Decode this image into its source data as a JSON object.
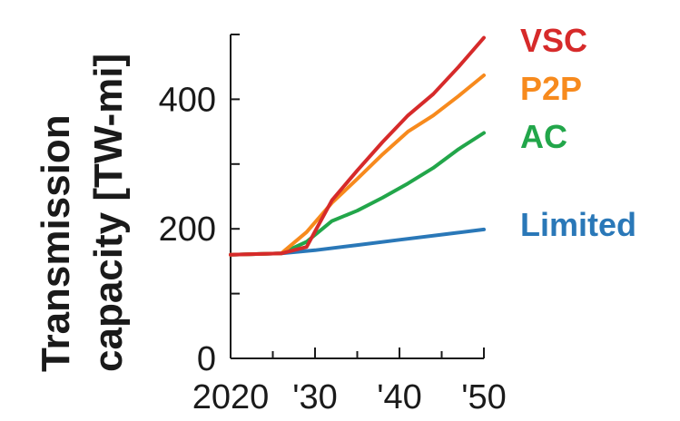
{
  "chart_data": {
    "type": "line",
    "ylabel_lines": [
      "Transmission",
      "capacity [TW-mi]"
    ],
    "xlabel": "",
    "xlim": [
      2020,
      2050
    ],
    "ylim": [
      0,
      500
    ],
    "x_ticks": [
      {
        "value": 2020,
        "label": "2020"
      },
      {
        "value": 2030,
        "label": "'30"
      },
      {
        "value": 2040,
        "label": "'40"
      },
      {
        "value": 2050,
        "label": "'50"
      }
    ],
    "y_ticks": [
      {
        "value": 0,
        "label": "0"
      },
      {
        "value": 200,
        "label": "200"
      },
      {
        "value": 400,
        "label": "400"
      }
    ],
    "legend_placement": "right",
    "grid": false,
    "series": [
      {
        "name": "Limited",
        "color": "#2a78b8",
        "x": [
          2020,
          2026,
          2030,
          2035,
          2040,
          2045,
          2050
        ],
        "y": [
          160,
          162,
          167,
          175,
          183,
          191,
          199
        ]
      },
      {
        "name": "AC",
        "color": "#22a64a",
        "x": [
          2020,
          2026,
          2029,
          2032,
          2035,
          2038,
          2041,
          2044,
          2047,
          2050
        ],
        "y": [
          160,
          162,
          180,
          212,
          228,
          248,
          270,
          294,
          323,
          348
        ]
      },
      {
        "name": "P2P",
        "color": "#f78a1d",
        "x": [
          2020,
          2026,
          2029,
          2032,
          2035,
          2038,
          2041,
          2044,
          2047,
          2050
        ],
        "y": [
          160,
          162,
          195,
          240,
          277,
          315,
          350,
          375,
          405,
          437
        ]
      },
      {
        "name": "VSC",
        "color": "#d62a2a",
        "x": [
          2020,
          2026,
          2029,
          2032,
          2035,
          2038,
          2041,
          2044,
          2047,
          2050
        ],
        "y": [
          160,
          162,
          172,
          244,
          290,
          334,
          375,
          408,
          450,
          495
        ]
      }
    ]
  }
}
